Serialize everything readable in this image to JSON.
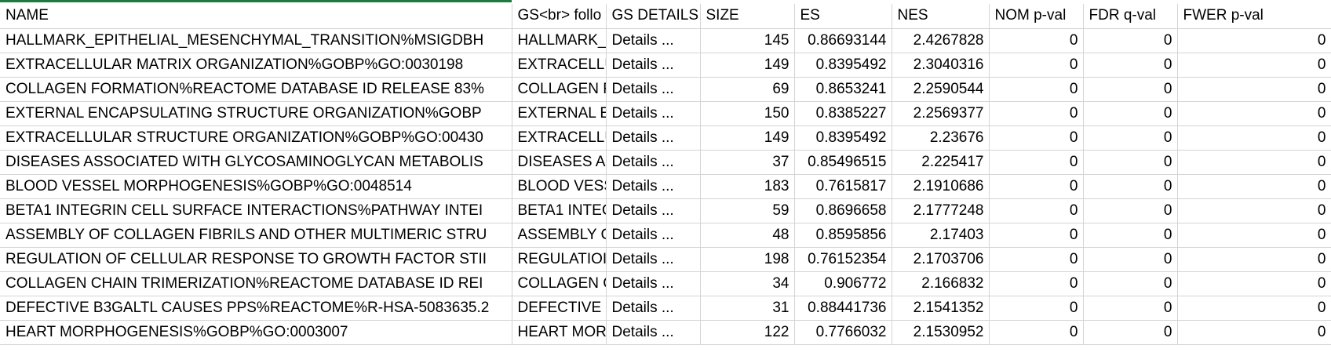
{
  "sheet": {
    "accent_color": "#1f7a3f",
    "grid_color": "#d4d4d4",
    "headers": [
      "NAME",
      "GS<br> follo",
      "GS DETAILS",
      "SIZE",
      "ES",
      "NES",
      "NOM p-val",
      "FDR q-val",
      "FWER p-val"
    ],
    "rows": [
      [
        "HALLMARK_EPITHELIAL_MESENCHYMAL_TRANSITION%MSIGDBH",
        "HALLMARK_I",
        "Details ...",
        "145",
        "0.86693144",
        "2.4267828",
        "0",
        "0",
        "0"
      ],
      [
        "EXTRACELLULAR MATRIX ORGANIZATION%GOBP%GO:0030198",
        "EXTRACELLU",
        "Details ...",
        "149",
        "0.8395492",
        "2.3040316",
        "0",
        "0",
        "0"
      ],
      [
        "COLLAGEN FORMATION%REACTOME DATABASE ID RELEASE 83%",
        "COLLAGEN F",
        "Details ...",
        "69",
        "0.8653241",
        "2.2590544",
        "0",
        "0",
        "0"
      ],
      [
        "EXTERNAL ENCAPSULATING STRUCTURE ORGANIZATION%GOBP",
        "EXTERNAL EI",
        "Details ...",
        "150",
        "0.8385227",
        "2.2569377",
        "0",
        "0",
        "0"
      ],
      [
        "EXTRACELLULAR STRUCTURE ORGANIZATION%GOBP%GO:00430",
        "EXTRACELLU",
        "Details ...",
        "149",
        "0.8395492",
        "2.23676",
        "0",
        "0",
        "0"
      ],
      [
        "DISEASES ASSOCIATED WITH GLYCOSAMINOGLYCAN METABOLIS",
        "DISEASES AS",
        "Details ...",
        "37",
        "0.85496515",
        "2.225417",
        "0",
        "0",
        "0"
      ],
      [
        "BLOOD VESSEL MORPHOGENESIS%GOBP%GO:0048514",
        "BLOOD VESS",
        "Details ...",
        "183",
        "0.7615817",
        "2.1910686",
        "0",
        "0",
        "0"
      ],
      [
        "BETA1 INTEGRIN CELL SURFACE INTERACTIONS%PATHWAY INTEI",
        "BETA1 INTEC",
        "Details ...",
        "59",
        "0.8696658",
        "2.1777248",
        "0",
        "0",
        "0"
      ],
      [
        "ASSEMBLY OF COLLAGEN FIBRILS AND OTHER MULTIMERIC STRU",
        "ASSEMBLY C",
        "Details ...",
        "48",
        "0.8595856",
        "2.17403",
        "0",
        "0",
        "0"
      ],
      [
        "REGULATION OF CELLULAR RESPONSE TO GROWTH FACTOR STII",
        "REGULATIOI",
        "Details ...",
        "198",
        "0.76152354",
        "2.1703706",
        "0",
        "0",
        "0"
      ],
      [
        "COLLAGEN CHAIN TRIMERIZATION%REACTOME DATABASE ID REI",
        "COLLAGEN C",
        "Details ...",
        "34",
        "0.906772",
        "2.166832",
        "0",
        "0",
        "0"
      ],
      [
        "DEFECTIVE B3GALTL CAUSES PPS%REACTOME%R-HSA-5083635.2",
        "DEFECTIVE B",
        "Details ...",
        "31",
        "0.88441736",
        "2.1541352",
        "0",
        "0",
        "0"
      ],
      [
        "HEART MORPHOGENESIS%GOBP%GO:0003007",
        "HEART MOR",
        "Details ...",
        "122",
        "0.7766032",
        "2.1530952",
        "0",
        "0",
        "0"
      ]
    ]
  }
}
